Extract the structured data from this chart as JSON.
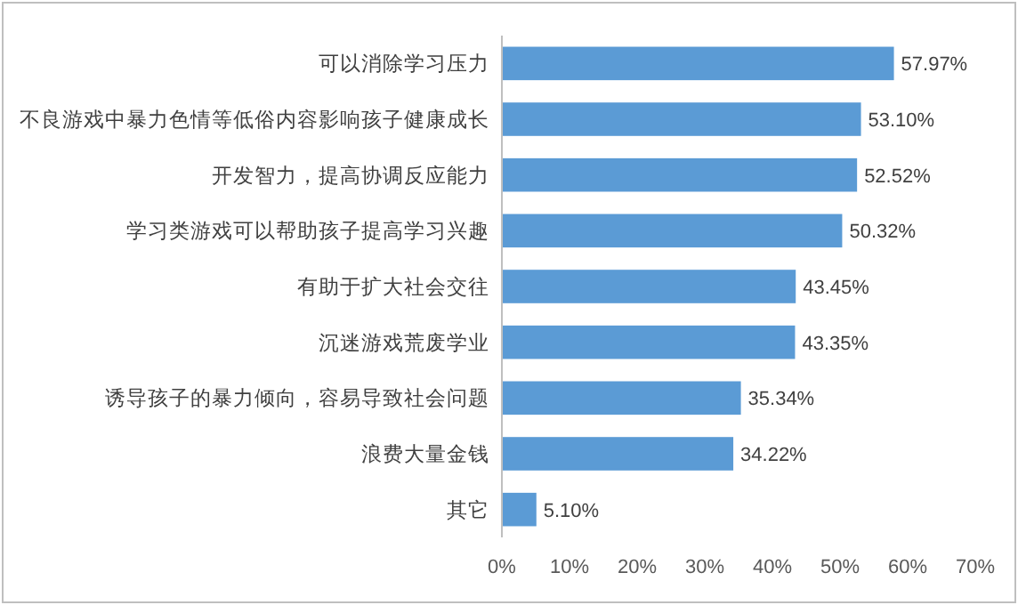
{
  "chart_data": {
    "type": "bar",
    "orientation": "horizontal",
    "categories": [
      "可以消除学习压力",
      "不良游戏中暴力色情等低俗内容影响孩子健康成长",
      "开发智力，提高协调反应能力",
      "学习类游戏可以帮助孩子提高学习兴趣",
      "有助于扩大社会交往",
      "沉迷游戏荒废学业",
      "诱导孩子的暴力倾向，容易导致社会问题",
      "浪费大量金钱",
      "其它"
    ],
    "values": [
      57.97,
      53.1,
      52.52,
      50.32,
      43.45,
      43.35,
      35.34,
      34.22,
      5.1
    ],
    "value_labels": [
      "57.97%",
      "53.10%",
      "52.52%",
      "50.32%",
      "43.45%",
      "43.35%",
      "35.34%",
      "34.22%",
      "5.10%"
    ],
    "color": "#5b9bd5",
    "xlim": [
      0,
      70
    ],
    "xticks": [
      {
        "value": 0,
        "label": "0%"
      },
      {
        "value": 10,
        "label": "10%"
      },
      {
        "value": 20,
        "label": "20%"
      },
      {
        "value": 30,
        "label": "30%"
      },
      {
        "value": 40,
        "label": "40%"
      },
      {
        "value": 50,
        "label": "50%"
      },
      {
        "value": 60,
        "label": "60%"
      },
      {
        "value": 70,
        "label": "70%"
      }
    ]
  }
}
